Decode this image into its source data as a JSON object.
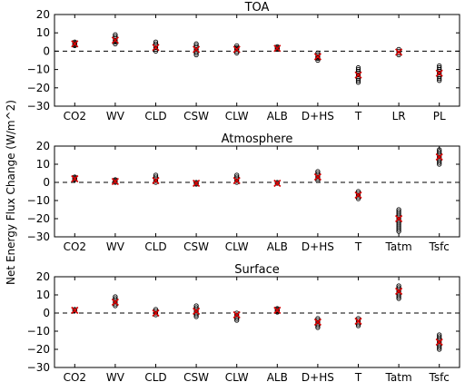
{
  "ylabel": "Net Energy Flux Change (W/m^2)",
  "colors": {
    "points": "#000000",
    "mean_marker": "#d40000"
  },
  "chart_data": [
    {
      "type": "scatter",
      "title": "TOA",
      "ylim": [
        -30,
        20
      ],
      "yticks": [
        -30,
        -20,
        -10,
        0,
        10,
        20
      ],
      "zero_line": "dashed",
      "categories": [
        "CO2",
        "WV",
        "CLD",
        "CSW",
        "CLW",
        "ALB",
        "D+HS",
        "T",
        "LR",
        "PL"
      ],
      "points": [
        [
          3.5,
          4,
          4.5,
          5,
          3
        ],
        [
          4,
          5,
          6,
          7,
          8,
          9,
          5.5
        ],
        [
          0,
          1,
          2,
          3,
          4,
          5
        ],
        [
          -2,
          -1,
          0,
          1,
          2,
          3,
          4
        ],
        [
          -1,
          0,
          1,
          2,
          3,
          1.5
        ],
        [
          1,
          1.5,
          2,
          2.5
        ],
        [
          -5,
          -4,
          -3,
          -2,
          -1,
          -3.5
        ],
        [
          -17,
          -16,
          -15,
          -14,
          -13,
          -12,
          -11,
          -10,
          -9
        ],
        [
          -2,
          -1,
          0,
          1
        ],
        [
          -16,
          -15,
          -14,
          -13,
          -12,
          -11,
          -10,
          -9,
          -8
        ]
      ],
      "means": [
        4,
        6,
        2,
        1,
        1,
        1.5,
        -3,
        -13,
        -0.5,
        -12
      ]
    },
    {
      "type": "scatter",
      "title": "Atmosphere",
      "ylim": [
        -30,
        20
      ],
      "yticks": [
        -30,
        -20,
        -10,
        0,
        10,
        20
      ],
      "zero_line": "dashed",
      "categories": [
        "CO2",
        "WV",
        "CLD",
        "CSW",
        "CLW",
        "ALB",
        "D+HS",
        "T",
        "Tatm",
        "Tsfc"
      ],
      "points": [
        [
          1.5,
          2,
          2.5,
          3
        ],
        [
          0,
          0.5,
          1,
          1.5
        ],
        [
          0,
          1,
          2,
          3,
          4
        ],
        [
          -1,
          -0.5,
          0
        ],
        [
          0,
          1,
          2,
          3,
          4
        ],
        [
          -0.5,
          0
        ],
        [
          1,
          2,
          3,
          4,
          5,
          6
        ],
        [
          -9,
          -8,
          -7,
          -6,
          -5
        ],
        [
          -27,
          -26,
          -25,
          -24,
          -23,
          -22,
          -21,
          -20,
          -19,
          -18,
          -17,
          -16,
          -15
        ],
        [
          10,
          11,
          12,
          13,
          14,
          15,
          16,
          17,
          18
        ]
      ],
      "means": [
        2,
        0.5,
        1,
        -0.5,
        1,
        -0.5,
        3,
        -7,
        -20,
        14
      ]
    },
    {
      "type": "scatter",
      "title": "Surface",
      "ylim": [
        -30,
        20
      ],
      "yticks": [
        -30,
        -20,
        -10,
        0,
        10,
        20
      ],
      "zero_line": "dashed",
      "categories": [
        "CO2",
        "WV",
        "CLD",
        "CSW",
        "CLW",
        "ALB",
        "D+HS",
        "T",
        "Tatm",
        "Tsfc"
      ],
      "points": [
        [
          1.5,
          2
        ],
        [
          4,
          5,
          6,
          7,
          8,
          9
        ],
        [
          -1,
          0,
          1,
          2
        ],
        [
          -2,
          -1,
          0,
          1,
          2,
          3,
          4
        ],
        [
          -4,
          -3,
          -2,
          -1,
          0
        ],
        [
          0.5,
          1,
          1.5,
          2,
          2.5
        ],
        [
          -8,
          -7,
          -6,
          -5,
          -4,
          -3
        ],
        [
          -7,
          -6,
          -5,
          -4,
          -3
        ],
        [
          8,
          9,
          10,
          11,
          12,
          13,
          14,
          15
        ],
        [
          -20,
          -19,
          -18,
          -17,
          -16,
          -15,
          -14,
          -13,
          -12
        ]
      ],
      "means": [
        1.5,
        6,
        0,
        1,
        -1,
        1.5,
        -5,
        -4.5,
        12,
        -16
      ]
    }
  ]
}
